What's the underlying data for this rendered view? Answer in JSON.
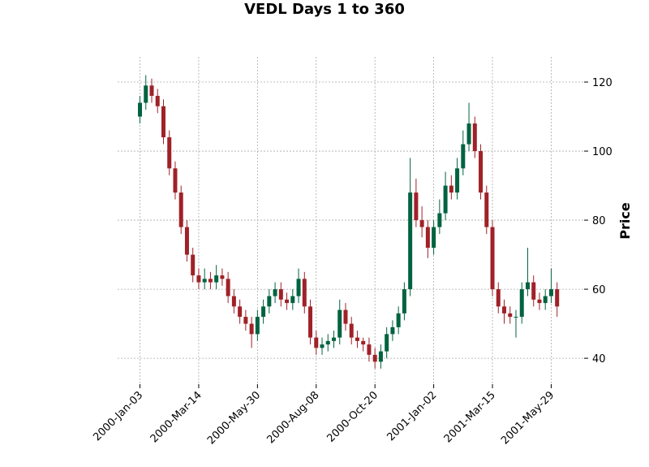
{
  "chart_data": {
    "type": "candlestick",
    "title": "VEDL Days 1 to 360",
    "ylabel": "Price",
    "x": [
      0,
      5,
      10,
      15,
      20,
      25,
      30,
      35,
      40,
      45,
      50,
      55,
      60,
      65,
      70,
      75,
      80,
      85,
      90,
      95,
      100,
      105,
      110,
      115,
      120,
      125,
      130,
      135,
      140,
      145,
      150,
      155,
      160,
      165,
      170,
      175,
      180,
      185,
      190,
      195,
      200,
      205,
      210,
      215,
      220,
      225,
      230,
      235,
      240,
      245,
      250,
      255,
      260,
      265,
      270,
      275,
      280,
      285,
      290,
      295,
      300,
      305,
      310,
      315,
      320,
      325,
      330,
      335,
      340,
      345,
      350,
      355
    ],
    "open": [
      110,
      114,
      119,
      116,
      113,
      104,
      95,
      88,
      78,
      70,
      64,
      62,
      63,
      62,
      64,
      63,
      58,
      55,
      52,
      50,
      47,
      52,
      55,
      58,
      60,
      57,
      56,
      58,
      63,
      55,
      46,
      43,
      44,
      45,
      46,
      54,
      50,
      46,
      45,
      44,
      41,
      39,
      42,
      47,
      49,
      53,
      60,
      88,
      80,
      78,
      72,
      78,
      82,
      90,
      88,
      95,
      102,
      108,
      100,
      88,
      78,
      60,
      55,
      53,
      52,
      52,
      60,
      62,
      57,
      56,
      58,
      60
    ],
    "high": [
      116,
      122,
      121,
      118,
      115,
      106,
      97,
      90,
      80,
      72,
      66,
      66,
      65,
      67,
      66,
      65,
      60,
      57,
      54,
      52,
      54,
      57,
      60,
      62,
      62,
      59,
      60,
      66,
      65,
      57,
      48,
      46,
      47,
      48,
      57,
      56,
      52,
      48,
      46,
      46,
      43,
      44,
      49,
      51,
      55,
      62,
      98,
      92,
      84,
      80,
      80,
      86,
      94,
      93,
      98,
      106,
      114,
      110,
      102,
      90,
      80,
      62,
      57,
      55,
      54,
      62,
      72,
      64,
      59,
      60,
      66,
      62
    ],
    "low": [
      108,
      112,
      114,
      111,
      102,
      93,
      86,
      76,
      68,
      62,
      60,
      60,
      60,
      60,
      61,
      56,
      53,
      50,
      48,
      43,
      45,
      50,
      53,
      56,
      55,
      54,
      54,
      56,
      53,
      44,
      41,
      41,
      42,
      43,
      44,
      48,
      44,
      43,
      42,
      39,
      37,
      37,
      40,
      45,
      47,
      51,
      58,
      78,
      75,
      69,
      70,
      76,
      80,
      86,
      86,
      93,
      100,
      98,
      86,
      76,
      58,
      53,
      50,
      50,
      46,
      50,
      58,
      55,
      54,
      54,
      56,
      52
    ],
    "close": [
      114,
      119,
      116,
      113,
      104,
      95,
      88,
      78,
      70,
      64,
      62,
      63,
      62,
      64,
      63,
      58,
      55,
      52,
      50,
      47,
      52,
      55,
      58,
      60,
      57,
      56,
      58,
      63,
      55,
      46,
      43,
      44,
      45,
      46,
      54,
      50,
      46,
      45,
      44,
      41,
      39,
      42,
      47,
      49,
      53,
      60,
      88,
      80,
      78,
      72,
      78,
      82,
      90,
      88,
      95,
      102,
      108,
      100,
      88,
      78,
      60,
      55,
      53,
      52,
      52,
      60,
      62,
      57,
      56,
      58,
      60,
      55
    ],
    "up_color": "#006340",
    "down_color": "#a02128",
    "xlim": [
      -19,
      378
    ],
    "ylim": [
      32.5,
      127.3
    ],
    "xticks": [
      {
        "value": 0,
        "label": "2000-Jan-03"
      },
      {
        "value": 50,
        "label": "2000-Mar-14"
      },
      {
        "value": 100,
        "label": "2000-May-30"
      },
      {
        "value": 150,
        "label": "2000-Aug-08"
      },
      {
        "value": 200,
        "label": "2000-Oct-20"
      },
      {
        "value": 250,
        "label": "2001-Jan-02"
      },
      {
        "value": 300,
        "label": "2001-Mar-15"
      },
      {
        "value": 350,
        "label": "2001-May-29"
      }
    ],
    "yticks": [
      40,
      60,
      80,
      100,
      120
    ],
    "grid": true
  }
}
